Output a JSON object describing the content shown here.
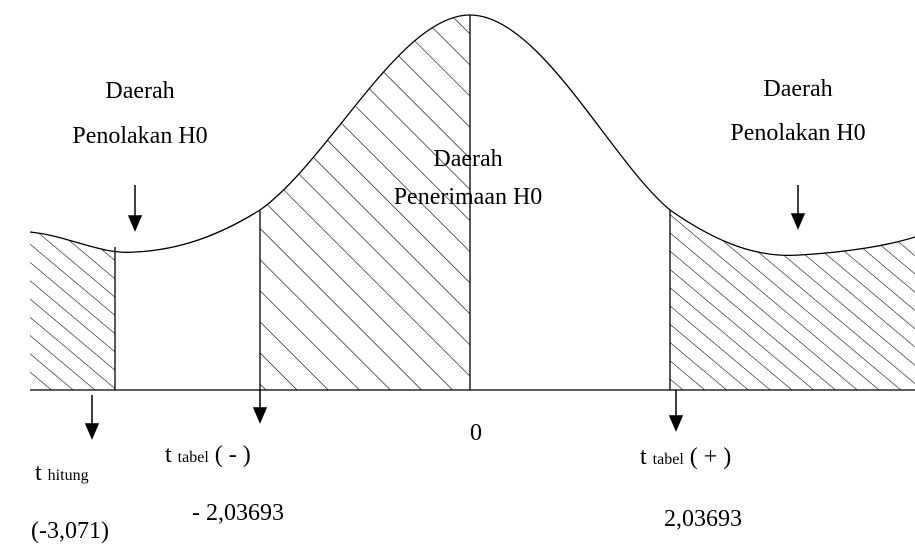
{
  "left_region": {
    "line1": "Daerah",
    "line2": "Penolakan H0"
  },
  "center_region": {
    "line1": "Daerah",
    "line2": "Penerimaan H0"
  },
  "right_region": {
    "line1": "Daerah",
    "line2": "Penolakan H0"
  },
  "origin": "0",
  "t_hitung": {
    "symbol": "t",
    "subscript": "hitung",
    "value": "(-3,071)"
  },
  "t_tabel_neg": {
    "symbol": "t",
    "subscript": "tabel",
    "sign": "( - )",
    "value": "- 2,03693"
  },
  "t_tabel_pos": {
    "symbol": "t",
    "subscript": "tabel",
    "sign": "( + )",
    "value": "2,03693"
  }
}
